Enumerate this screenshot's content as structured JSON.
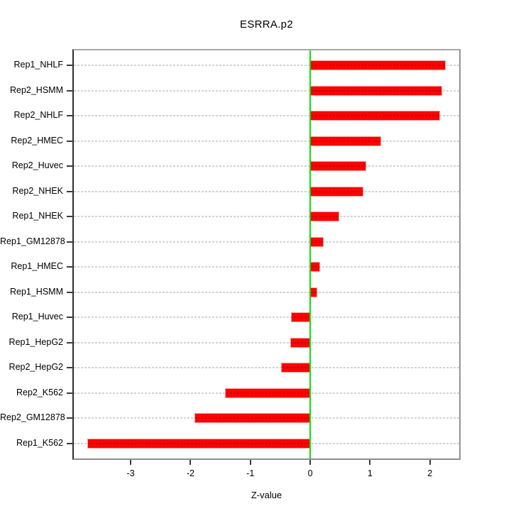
{
  "chart_data": {
    "type": "bar",
    "orientation": "horizontal",
    "title": "ESRRA.p2",
    "xlabel": "Z-value",
    "ylabel": "",
    "categories": [
      "Rep1_NHLF",
      "Rep2_HSMM",
      "Rep2_NHLF",
      "Rep2_HMEC",
      "Rep2_Huvec",
      "Rep2_NHEK",
      "Rep1_NHEK",
      "Rep1_GM12878",
      "Rep1_HMEC",
      "Rep1_HSMM",
      "Rep1_Huvec",
      "Rep1_HepG2",
      "Rep2_HepG2",
      "Rep2_K562",
      "Rep2_GM12878",
      "Rep1_K562"
    ],
    "values": [
      2.27,
      2.21,
      2.17,
      1.19,
      0.94,
      0.89,
      0.48,
      0.22,
      0.16,
      0.12,
      -0.32,
      -0.33,
      -0.49,
      -1.42,
      -1.93,
      -3.72
    ],
    "xticks": [
      -3,
      -2,
      -1,
      0,
      1,
      2
    ],
    "xtick_labels": [
      "-3",
      "-2",
      "-1",
      "0",
      "1",
      "2"
    ],
    "xlim": [
      -3.95,
      2.49
    ],
    "grid": "light-gray dashed horizontal line through each bar",
    "legend": "none",
    "zero_reference_line": 0,
    "colors": {
      "bar_fill": "#fb0300",
      "zero_line": "#00e40a",
      "gridline": "#d3d3d3",
      "box_border": "#8e8e8e",
      "axis_line": "#2e2e2e",
      "text": "#000000",
      "background": "#ffffff"
    }
  }
}
